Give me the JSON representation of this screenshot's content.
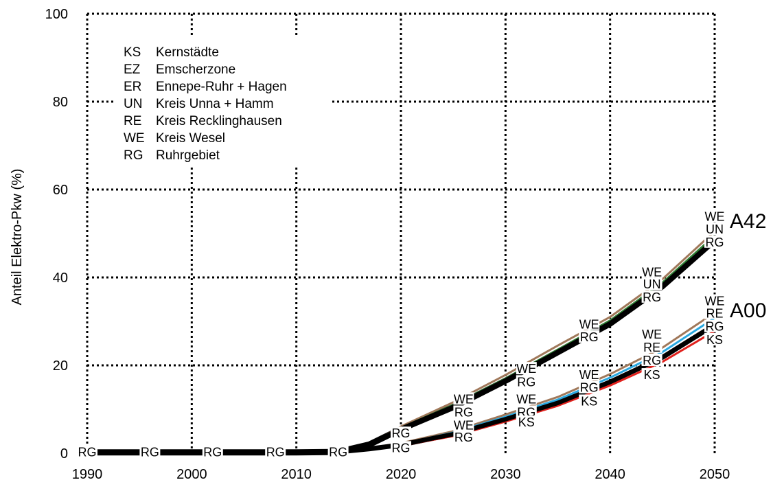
{
  "chart_data": {
    "type": "line",
    "title": "",
    "xlabel": "",
    "ylabel": "Anteil Elektro-Pkw (%)",
    "xlim": [
      1990,
      2050
    ],
    "ylim": [
      0,
      100
    ],
    "x_ticks": [
      "1990",
      "2000",
      "2010",
      "2020",
      "2030",
      "2040",
      "2050"
    ],
    "y_ticks": [
      "0",
      "20",
      "40",
      "60",
      "80",
      "100"
    ],
    "grid": true,
    "grid_style": "dotted",
    "legend_position": "top-left",
    "legend": [
      {
        "code": "KS",
        "name": "Kernstädte"
      },
      {
        "code": "EZ",
        "name": "Emscherzone"
      },
      {
        "code": "ER",
        "name": "Ennepe-Ruhr + Hagen"
      },
      {
        "code": "UN",
        "name": "Kreis Unna + Hamm"
      },
      {
        "code": "RE",
        "name": "Kreis Recklinghausen"
      },
      {
        "code": "WE",
        "name": "Kreis Wesel"
      },
      {
        "code": "RG",
        "name": "Ruhrgebiet"
      }
    ],
    "scenario_labels": [
      "A42",
      "A00"
    ],
    "base_series": {
      "scenario": "A42",
      "x": [
        1990,
        1995,
        2000,
        2005,
        2010,
        2014,
        2017,
        2020,
        2025,
        2030,
        2035,
        2040,
        2045,
        2050
      ],
      "RG": [
        0.2,
        0.2,
        0.2,
        0.2,
        0.2,
        0.3,
        2.0,
        5.5,
        10.5,
        16.5,
        23.0,
        29.5,
        38.0,
        48.5
      ],
      "UN": [
        0.2,
        0.2,
        0.2,
        0.2,
        0.2,
        0.3,
        2.0,
        5.8,
        11.0,
        17.0,
        23.6,
        30.2,
        38.8,
        49.5
      ],
      "WE": [
        0.2,
        0.2,
        0.2,
        0.2,
        0.2,
        0.3,
        2.1,
        6.1,
        11.6,
        17.8,
        24.5,
        31.0,
        39.6,
        50.5
      ]
    },
    "series": [
      {
        "name": "WE",
        "scenario": "A42",
        "x": [
          2017,
          2020,
          2025,
          2030,
          2035,
          2040,
          2045,
          2050
        ],
        "values": [
          2.1,
          6.1,
          11.6,
          17.8,
          24.5,
          31.0,
          39.6,
          50.5
        ],
        "color": "#a0785a"
      },
      {
        "name": "UN",
        "scenario": "A42",
        "x": [
          2017,
          2020,
          2025,
          2030,
          2035,
          2040,
          2045,
          2050
        ],
        "values": [
          2.0,
          5.8,
          11.0,
          17.0,
          23.6,
          30.2,
          38.8,
          49.5
        ],
        "color": "#2e7d32"
      },
      {
        "name": "RG",
        "scenario": "A42",
        "x": [
          2017,
          2020,
          2025,
          2030,
          2035,
          2040,
          2045,
          2050
        ],
        "values": [
          2.0,
          5.5,
          10.5,
          16.5,
          23.0,
          29.5,
          38.0,
          48.5
        ],
        "color": "#000000"
      },
      {
        "name": "WE",
        "scenario": "A00",
        "x": [
          2014,
          2017,
          2020,
          2025,
          2030,
          2035,
          2040,
          2045,
          2050
        ],
        "values": [
          0.3,
          1.2,
          2.3,
          5.0,
          8.8,
          12.8,
          18.0,
          24.0,
          32.0
        ],
        "color": "#a0785a"
      },
      {
        "name": "RE",
        "scenario": "A00",
        "x": [
          2014,
          2017,
          2020,
          2025,
          2030,
          2035,
          2040,
          2045,
          2050
        ],
        "values": [
          0.3,
          1.1,
          2.1,
          4.7,
          8.3,
          12.2,
          17.2,
          23.0,
          30.8
        ],
        "color": "#29a8e0"
      },
      {
        "name": "RG",
        "scenario": "A00",
        "x": [
          2014,
          2017,
          2020,
          2025,
          2030,
          2035,
          2040,
          2045,
          2050
        ],
        "values": [
          0.3,
          1.0,
          1.9,
          4.3,
          7.7,
          11.4,
          16.2,
          21.8,
          29.2
        ],
        "color": "#000000"
      },
      {
        "name": "KS",
        "scenario": "A00",
        "x": [
          2014,
          2017,
          2020,
          2025,
          2030,
          2035,
          2040,
          2045,
          2050
        ],
        "values": [
          0.3,
          0.9,
          1.7,
          3.9,
          7.2,
          10.8,
          15.4,
          20.8,
          27.8
        ],
        "color": "#e0201c"
      }
    ],
    "point_labels": [
      {
        "text": "RG",
        "x": 1990,
        "y": 0.2
      },
      {
        "text": "RG",
        "x": 1996,
        "y": 0.2
      },
      {
        "text": "RG",
        "x": 2002,
        "y": 0.2
      },
      {
        "text": "RG",
        "x": 2008,
        "y": 0.2
      },
      {
        "text": "RG",
        "x": 2014,
        "y": 0.2
      },
      {
        "text": "RG",
        "x": 2020,
        "y": 4.5
      },
      {
        "text": "RG",
        "x": 2020,
        "y": 1.2
      },
      {
        "text": "WE",
        "x": 2026,
        "y": 12.3
      },
      {
        "text": "RG",
        "x": 2026,
        "y": 9.3
      },
      {
        "text": "WE",
        "x": 2026,
        "y": 6.3
      },
      {
        "text": "RG",
        "x": 2026,
        "y": 3.6
      },
      {
        "text": "WE",
        "x": 2032,
        "y": 19.2
      },
      {
        "text": "RG",
        "x": 2032,
        "y": 16.2
      },
      {
        "text": "WE",
        "x": 2032,
        "y": 12.3
      },
      {
        "text": "RG",
        "x": 2032,
        "y": 9.3
      },
      {
        "text": "KS",
        "x": 2032,
        "y": 7.0
      },
      {
        "text": "WE",
        "x": 2038,
        "y": 29.3
      },
      {
        "text": "RG",
        "x": 2038,
        "y": 26.4
      },
      {
        "text": "WE",
        "x": 2038,
        "y": 17.8
      },
      {
        "text": "RG",
        "x": 2038,
        "y": 14.9
      },
      {
        "text": "KS",
        "x": 2038,
        "y": 11.8
      },
      {
        "text": "WE",
        "x": 2044,
        "y": 41.2
      },
      {
        "text": "UN",
        "x": 2044,
        "y": 38.4
      },
      {
        "text": "RG",
        "x": 2044,
        "y": 35.5
      },
      {
        "text": "WE",
        "x": 2044,
        "y": 27.0
      },
      {
        "text": "RE",
        "x": 2044,
        "y": 24.1
      },
      {
        "text": "RG",
        "x": 2044,
        "y": 21.1
      },
      {
        "text": "KS",
        "x": 2044,
        "y": 17.8
      },
      {
        "text": "WE",
        "x": 2050,
        "y": 53.8
      },
      {
        "text": "UN",
        "x": 2050,
        "y": 50.9
      },
      {
        "text": "RG",
        "x": 2050,
        "y": 48.0
      },
      {
        "text": "WE",
        "x": 2050,
        "y": 34.6
      },
      {
        "text": "RE",
        "x": 2050,
        "y": 31.8
      },
      {
        "text": "RG",
        "x": 2050,
        "y": 28.8
      },
      {
        "text": "KS",
        "x": 2050,
        "y": 25.8
      }
    ]
  }
}
